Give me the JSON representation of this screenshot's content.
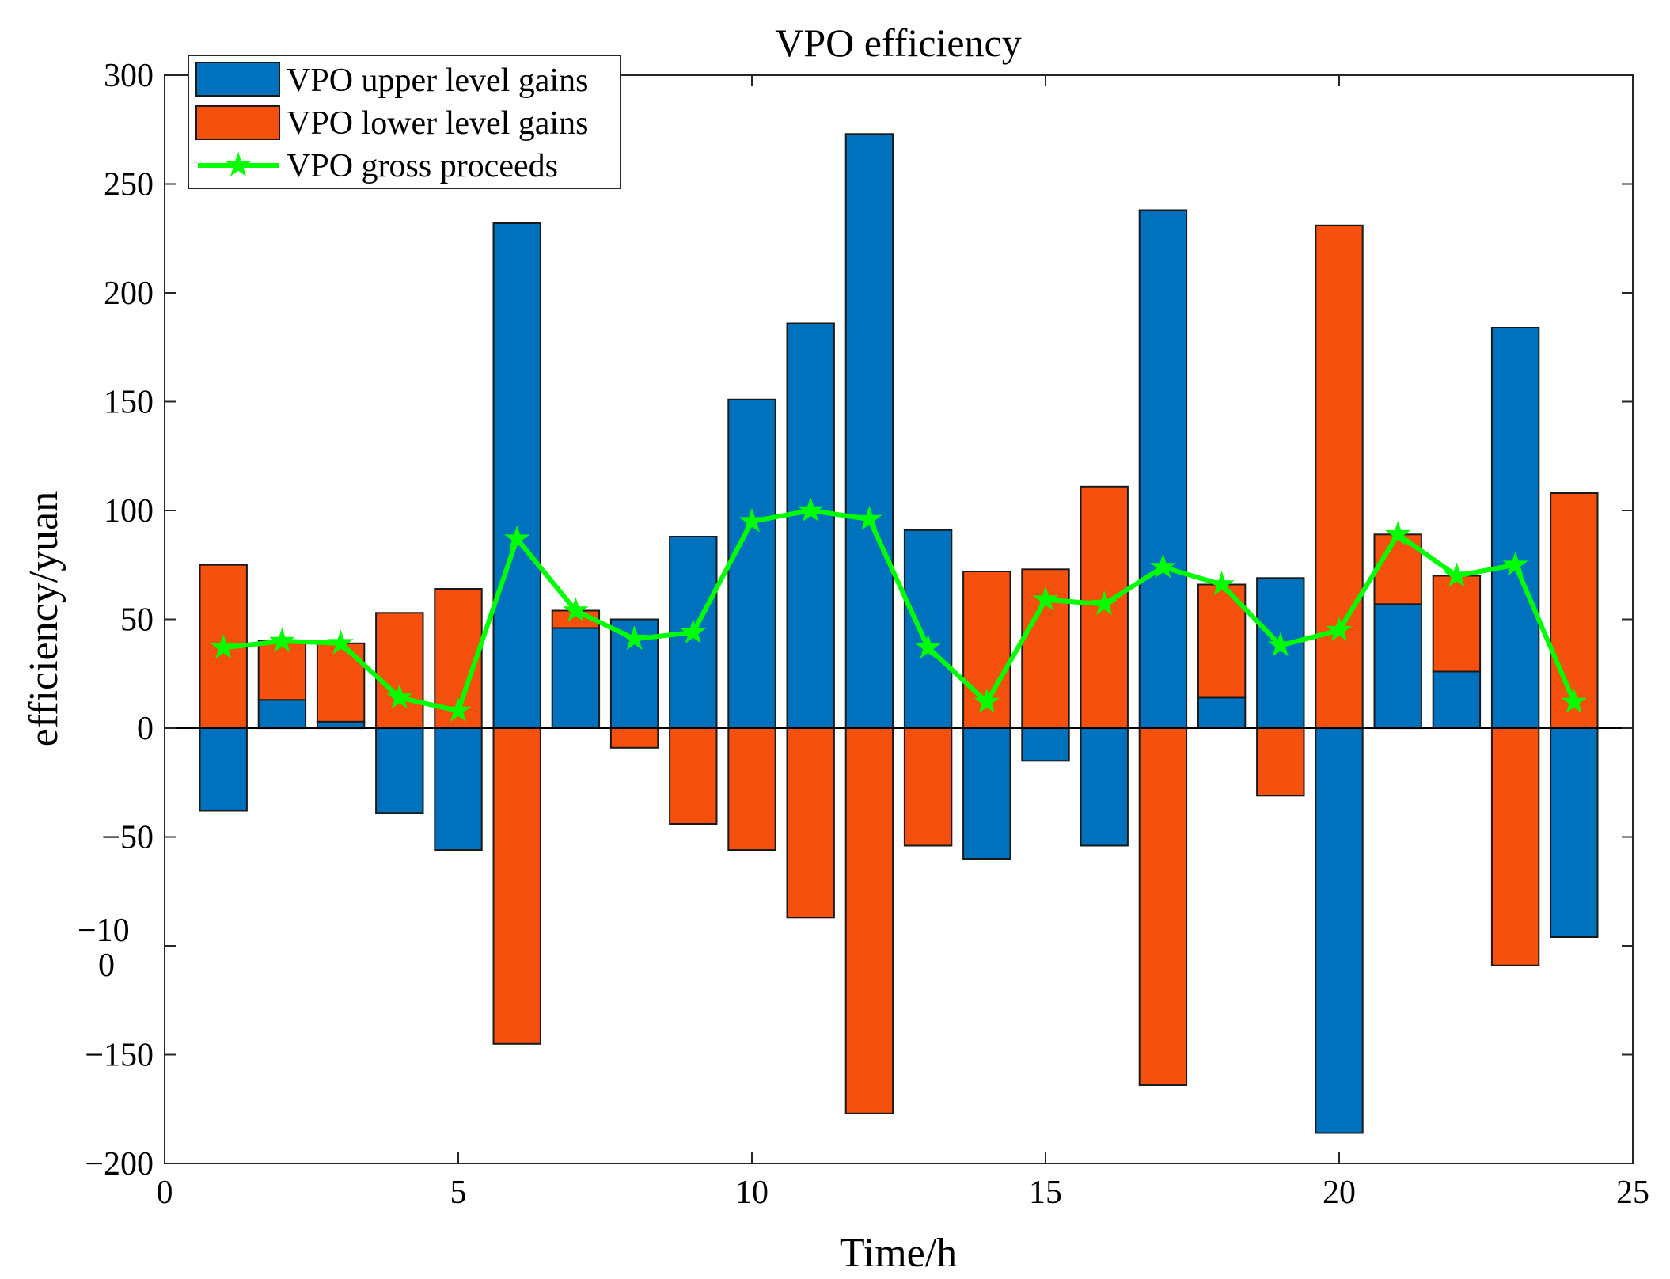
{
  "chart_data": {
    "type": "bar",
    "title": "VPO efficiency",
    "xlabel": "Time/h",
    "ylabel": "efficiency/yuan",
    "xlim": [
      0,
      25
    ],
    "ylim": [
      -200,
      300
    ],
    "xticks": [
      0,
      5,
      10,
      15,
      20,
      25
    ],
    "yticks": [
      300,
      250,
      200,
      150,
      100,
      50,
      0,
      -50,
      -100,
      -150,
      -200
    ],
    "ytick_labels": [
      "300",
      "250",
      "200",
      "150",
      "100",
      "50",
      "0",
      "−50",
      "−10\n0",
      "−150",
      "−200"
    ],
    "x": [
      1,
      2,
      3,
      4,
      5,
      6,
      7,
      8,
      9,
      10,
      11,
      12,
      13,
      14,
      15,
      16,
      17,
      18,
      19,
      20,
      21,
      22,
      23,
      24
    ],
    "legend_position": "top-left",
    "series": [
      {
        "name": "VPO upper level gains",
        "kind": "bar-stacked",
        "color": "#0072BD",
        "values": [
          -38,
          13,
          3,
          -39,
          -56,
          232,
          46,
          50,
          88,
          151,
          186,
          273,
          91,
          -60,
          -15,
          -54,
          238,
          14,
          69,
          -186,
          57,
          26,
          184,
          -96
        ]
      },
      {
        "name": "VPO lower level gains",
        "kind": "bar-stacked",
        "color": "#F5500E",
        "values": [
          75,
          27,
          36,
          53,
          64,
          -145,
          8,
          -9,
          -44,
          -56,
          -87,
          -177,
          -54,
          72,
          73,
          111,
          -164,
          52,
          -31,
          231,
          32,
          44,
          -109,
          108
        ]
      },
      {
        "name": "VPO gross proceeds",
        "kind": "line",
        "color": "#00FF00",
        "marker": "star",
        "values": [
          37,
          40,
          39,
          14,
          8,
          87,
          54,
          41,
          44,
          95,
          100,
          96,
          37,
          12,
          59,
          57,
          74,
          66,
          38,
          45,
          89,
          70,
          75,
          12
        ]
      }
    ]
  }
}
